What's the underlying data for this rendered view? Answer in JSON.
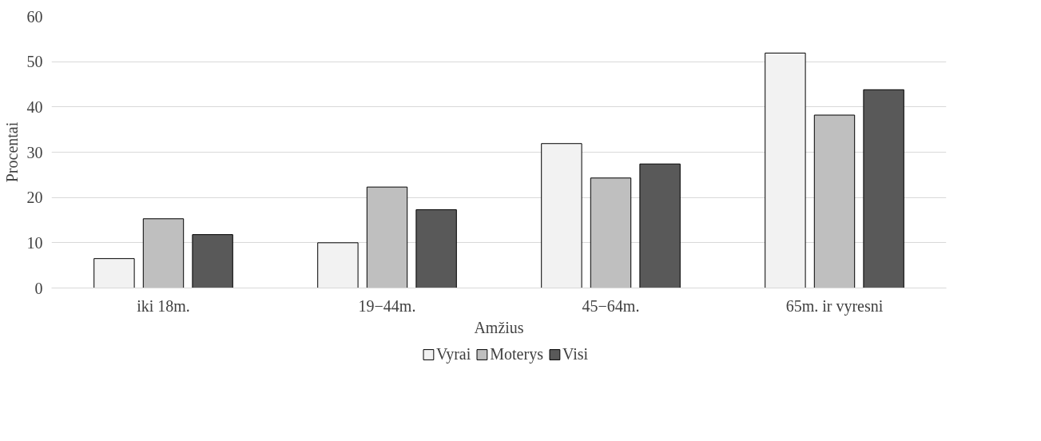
{
  "chart_data": {
    "type": "bar",
    "xlabel": "Amžius",
    "ylabel": "Procentai",
    "categories": [
      "iki 18m.",
      "19−44m.",
      "45−64m.",
      "65m. ir vyresni"
    ],
    "series": [
      {
        "name": "Vyrai",
        "color": "#f2f2f2",
        "values": [
          6.5,
          10.0,
          31.9,
          51.9
        ]
      },
      {
        "name": "Moterys",
        "color": "#bfbfbf",
        "values": [
          15.3,
          22.3,
          24.3,
          38.2
        ]
      },
      {
        "name": "Visi",
        "color": "#595959",
        "values": [
          11.8,
          17.3,
          27.4,
          43.8
        ]
      }
    ],
    "ylim": [
      0,
      60
    ],
    "yticks": [
      0,
      10,
      20,
      30,
      40,
      50,
      60
    ],
    "grid": "y",
    "legend": "bottom"
  }
}
